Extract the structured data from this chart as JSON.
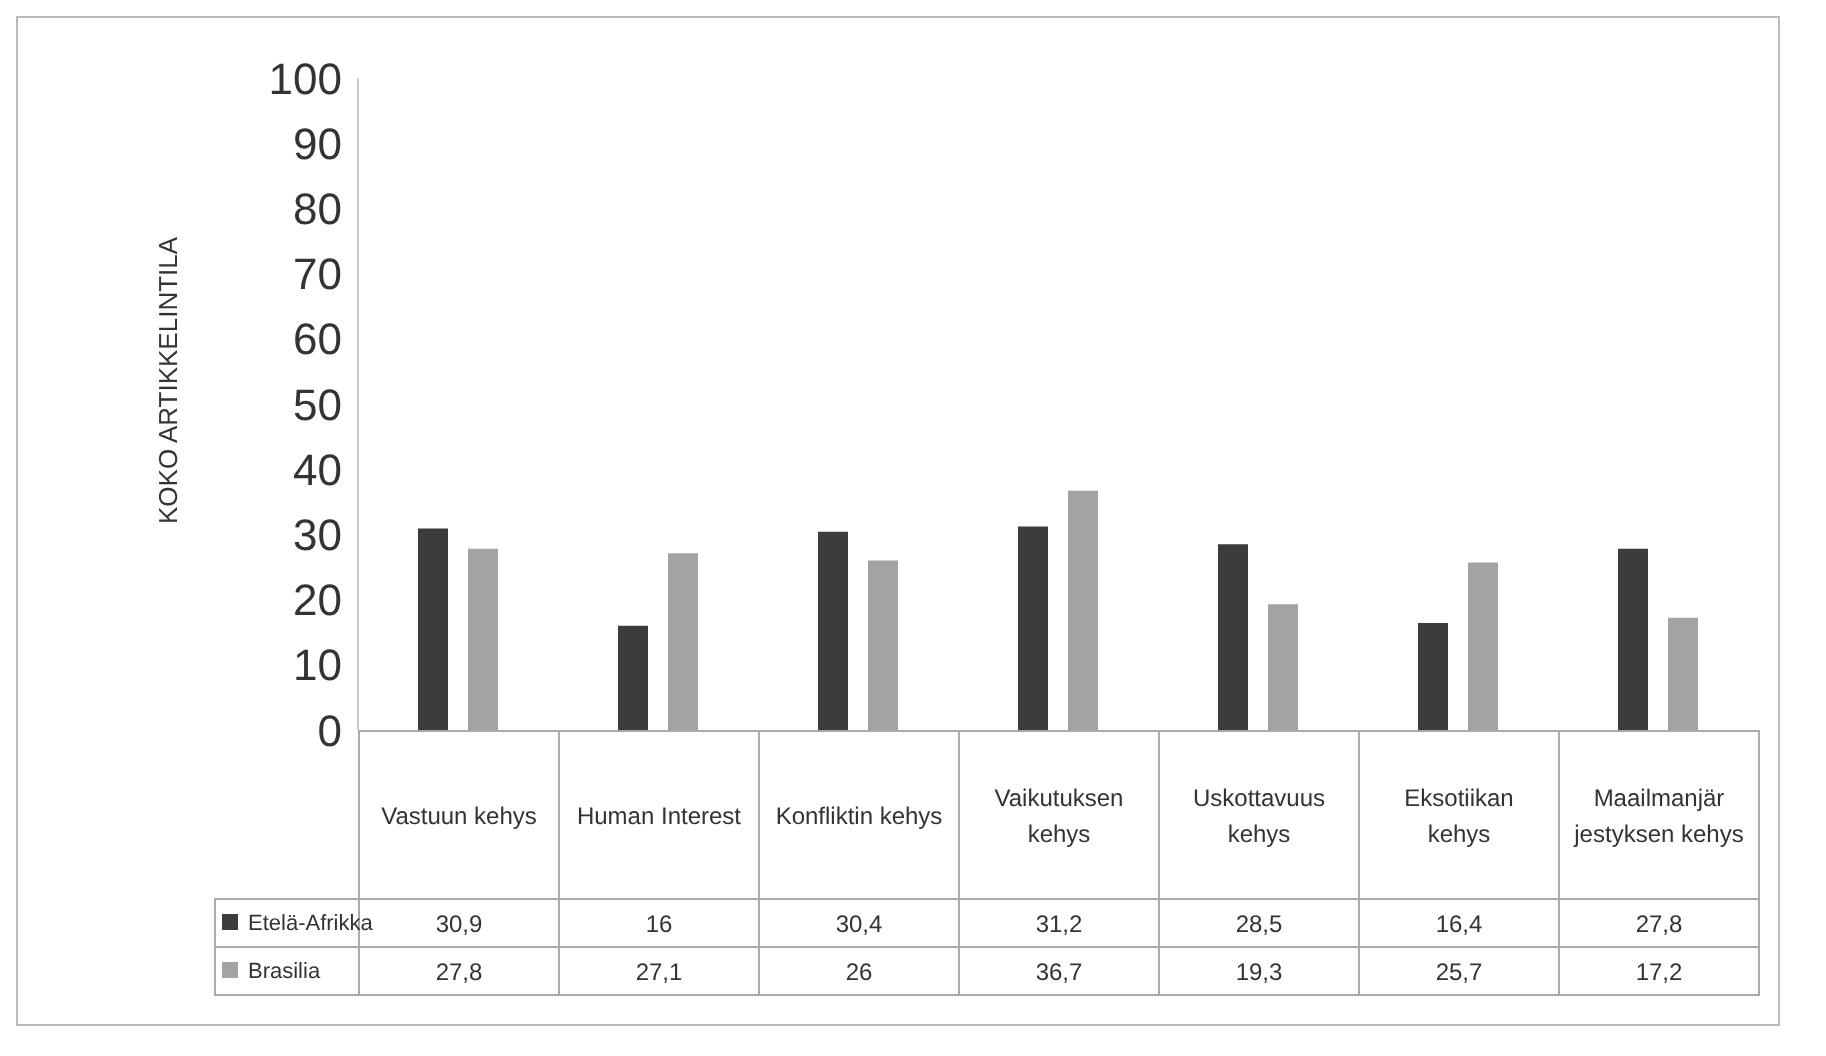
{
  "chart_data": {
    "type": "bar",
    "ylabel": "KOKO ARTIKKELINTILA",
    "categories": [
      "Vastuun kehys",
      "Human Interest",
      "Konfliktin kehys",
      "Vaikutuksen kehys",
      "Uskottavuus kehys",
      "Eksotiikan kehys",
      "Maailmanjär jestyksen kehys"
    ],
    "series": [
      {
        "name": "Etelä-Afrikka",
        "color": "#3c3c3c",
        "values": [
          30.9,
          16,
          30.4,
          31.2,
          28.5,
          16.4,
          27.8
        ],
        "value_labels": [
          "30,9",
          "16",
          "30,4",
          "31,2",
          "28,5",
          "16,4",
          "27,8"
        ]
      },
      {
        "name": "Brasilia",
        "color": "#a3a3a3",
        "values": [
          27.8,
          27.1,
          26,
          36.7,
          19.3,
          25.7,
          17.2
        ],
        "value_labels": [
          "27,8",
          "27,1",
          "26",
          "36,7",
          "19,3",
          "25,7",
          "17,2"
        ]
      }
    ],
    "ylim": [
      0,
      100
    ],
    "yticks": [
      0,
      10,
      20,
      30,
      40,
      50,
      60,
      70,
      80,
      90,
      100
    ],
    "grid": false,
    "legend": "bottom",
    "data_labels": true
  }
}
